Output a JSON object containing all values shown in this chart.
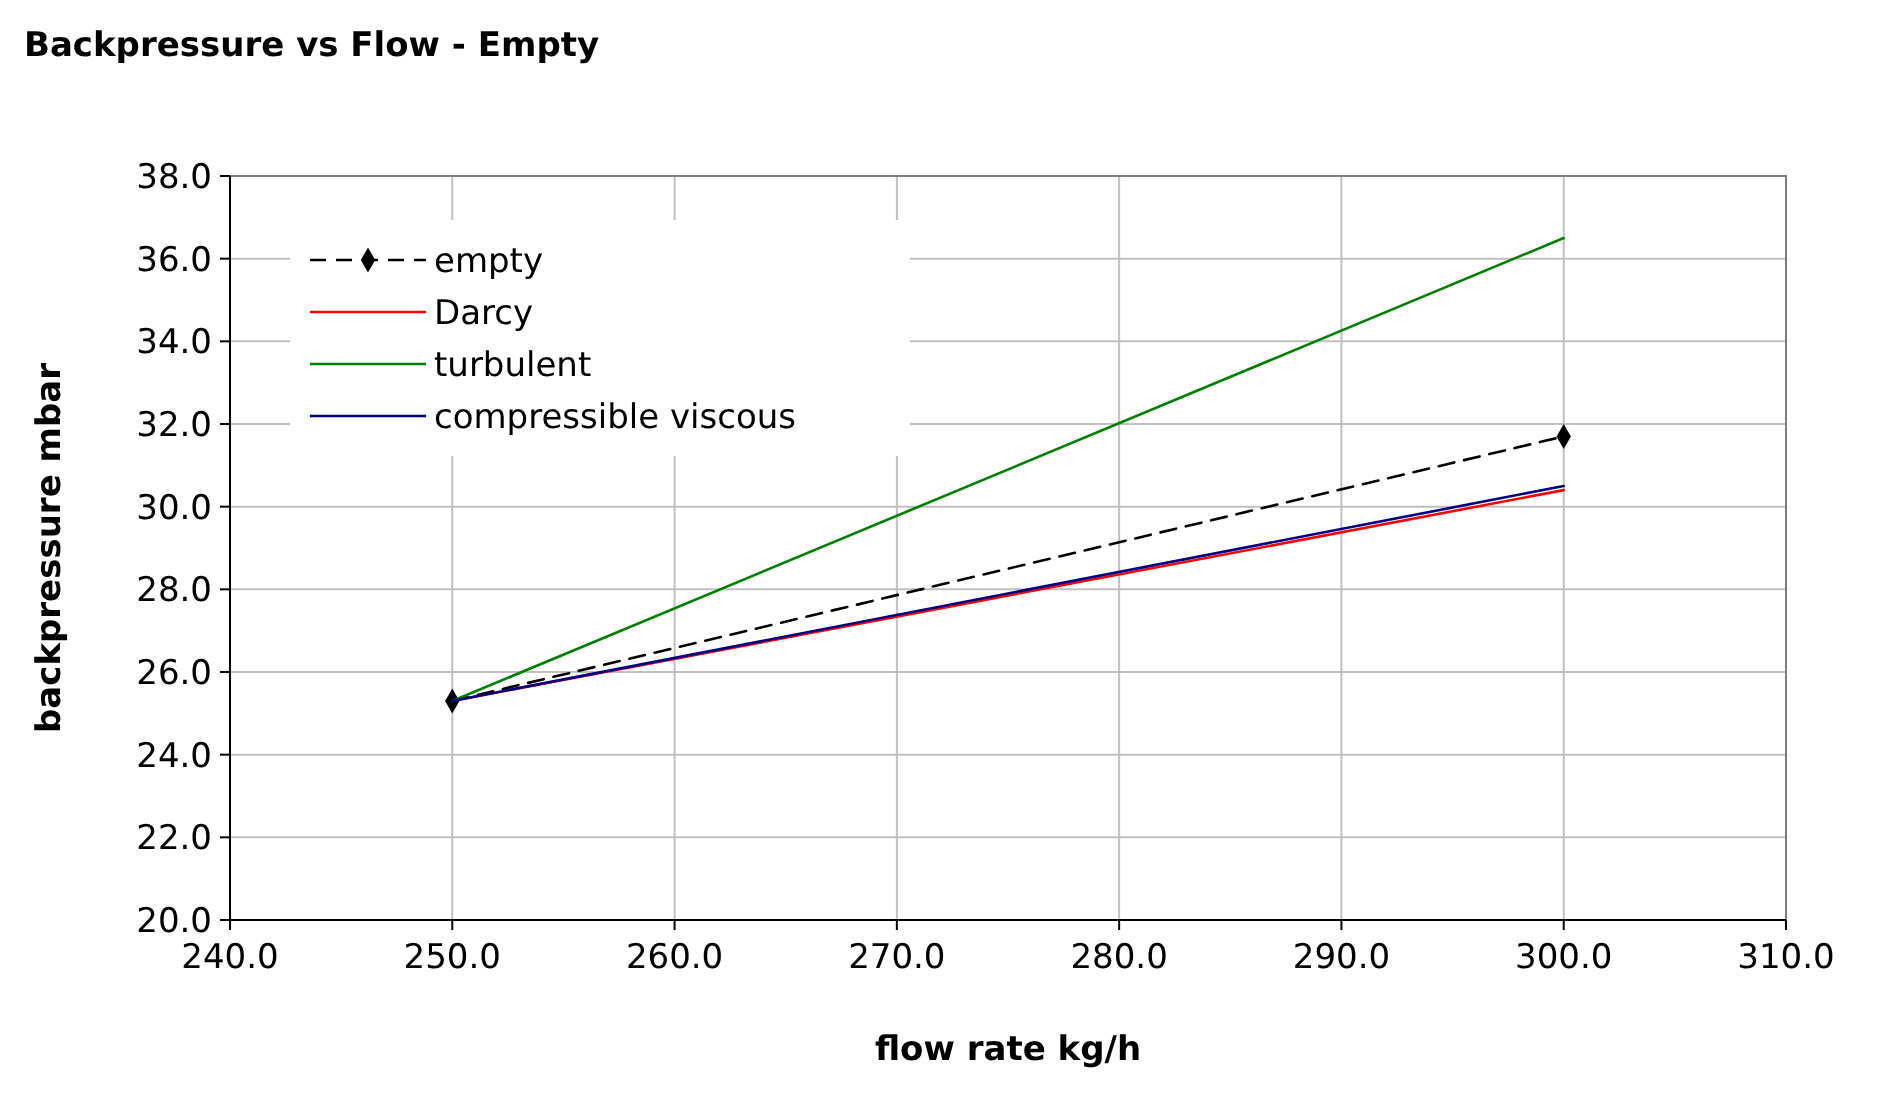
{
  "chart_data": {
    "type": "line",
    "title": "Backpressure vs Flow - Empty",
    "xlabel": "flow rate kg/h",
    "ylabel": "backpressure mbar",
    "x": [
      250,
      300
    ],
    "series": [
      {
        "name": "empty",
        "color": "#000000",
        "values": [
          25.3,
          31.7
        ],
        "marker": "diamond",
        "line_style": "dashed"
      },
      {
        "name": "Darcy",
        "color": "#ff0000",
        "values": [
          25.3,
          30.4
        ],
        "marker": "none",
        "line_style": "solid"
      },
      {
        "name": "turbulent",
        "color": "#008000",
        "values": [
          25.3,
          36.5
        ],
        "marker": "none",
        "line_style": "solid"
      },
      {
        "name": "compressible viscous",
        "color": "#000080",
        "values": [
          25.3,
          30.5
        ],
        "marker": "none",
        "line_style": "solid"
      }
    ],
    "xlim": [
      240,
      310
    ],
    "xticks": [
      {
        "value": 240,
        "label": "240.0"
      },
      {
        "value": 250,
        "label": "250.0"
      },
      {
        "value": 260,
        "label": "260.0"
      },
      {
        "value": 270,
        "label": "270.0"
      },
      {
        "value": 280,
        "label": "280.0"
      },
      {
        "value": 290,
        "label": "290.0"
      },
      {
        "value": 300,
        "label": "300.0"
      },
      {
        "value": 310,
        "label": "310.0"
      }
    ],
    "ylim": [
      20,
      38
    ],
    "yticks": [
      {
        "value": 20,
        "label": "20.0"
      },
      {
        "value": 22,
        "label": "22.0"
      },
      {
        "value": 24,
        "label": "24.0"
      },
      {
        "value": 26,
        "label": "26.0"
      },
      {
        "value": 28,
        "label": "28.0"
      },
      {
        "value": 30,
        "label": "30.0"
      },
      {
        "value": 32,
        "label": "32.0"
      },
      {
        "value": 34,
        "label": "34.0"
      },
      {
        "value": 36,
        "label": "36.0"
      },
      {
        "value": 38,
        "label": "38.0"
      }
    ],
    "grid": true,
    "legend": "top left"
  }
}
